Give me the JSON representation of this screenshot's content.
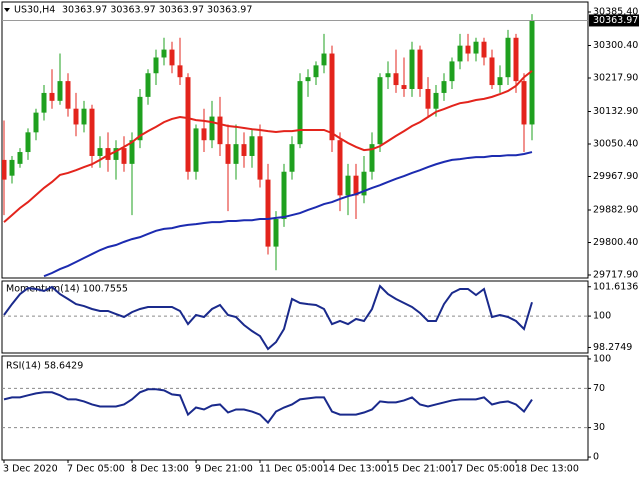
{
  "chart_data": [
    {
      "type": "candlestick",
      "title": "US30,H4",
      "quote": "30363.97 30363.97 30363.97 30363.97",
      "categories": [
        "3 Dec 2020",
        null,
        null,
        null,
        null,
        null,
        null,
        null,
        "7 Dec 05:00",
        null,
        null,
        null,
        null,
        null,
        null,
        null,
        "8 Dec 13:00",
        null,
        null,
        null,
        null,
        null,
        null,
        null,
        "9 Dec 21:00",
        null,
        null,
        null,
        null,
        null,
        null,
        null,
        "11 Dec 05:00",
        null,
        null,
        null,
        null,
        null,
        null,
        null,
        "14 Dec 13:00",
        null,
        null,
        null,
        null,
        null,
        null,
        null,
        "15 Dec 21:00",
        null,
        null,
        null,
        null,
        null,
        null,
        null,
        "17 Dec 05:00",
        null,
        null,
        null,
        null,
        null,
        null,
        null,
        "18 Dec 13:00",
        null,
        null
      ],
      "open": [
        30010,
        29970,
        30000,
        30030,
        30080,
        30130,
        30180,
        30160,
        30210,
        30140,
        30100,
        30140,
        30020,
        30040,
        30010,
        30040,
        30000,
        30060,
        30170,
        30230,
        30270,
        30290,
        30250,
        30220,
        29980,
        30090,
        30060,
        30120,
        30050,
        30000,
        30050,
        30020,
        30070,
        29960,
        29790,
        29860,
        29980,
        30050,
        30210,
        30220,
        30250,
        30280,
        30060,
        29920,
        29970,
        29920,
        29980,
        30050,
        30220,
        30230,
        30200,
        30190,
        30290,
        30190,
        30140,
        30180,
        30210,
        30260,
        30300,
        30280,
        30310,
        30270,
        30200,
        30220,
        30320,
        30210,
        30100
      ],
      "high": [
        30110,
        30020,
        30040,
        30090,
        30140,
        30200,
        30240,
        30280,
        30230,
        30180,
        30160,
        30150,
        30070,
        30080,
        30060,
        30070,
        30080,
        30190,
        30240,
        30290,
        30320,
        30310,
        30320,
        30230,
        30100,
        30140,
        30160,
        30170,
        30100,
        30100,
        30080,
        30090,
        30100,
        30000,
        29880,
        30000,
        30070,
        30230,
        30240,
        30260,
        30330,
        30300,
        30080,
        30000,
        30000,
        30020,
        30080,
        30230,
        30260,
        30290,
        30270,
        30310,
        30300,
        30220,
        30200,
        30230,
        30270,
        30330,
        30330,
        30320,
        30320,
        30290,
        30250,
        30340,
        30330,
        30230,
        30380
      ],
      "low": [
        29870,
        29950,
        29990,
        30010,
        30060,
        30110,
        30140,
        30150,
        30120,
        30070,
        30080,
        29990,
        29990,
        29980,
        29960,
        29980,
        29870,
        30040,
        30150,
        30200,
        30250,
        30230,
        30200,
        29960,
        29960,
        30030,
        30040,
        30020,
        29880,
        29960,
        29990,
        29990,
        29940,
        29770,
        29730,
        29840,
        29960,
        30040,
        30170,
        30200,
        30230,
        30030,
        29880,
        29870,
        29860,
        29900,
        29960,
        30030,
        30190,
        30180,
        30170,
        30170,
        30170,
        30120,
        30120,
        30160,
        30190,
        30240,
        30260,
        30260,
        30250,
        30190,
        30180,
        30200,
        30180,
        30030,
        30060
      ],
      "close": [
        29960,
        30010,
        30030,
        30080,
        30130,
        30180,
        30160,
        30210,
        30140,
        30100,
        30140,
        30020,
        30040,
        30010,
        30040,
        30000,
        30060,
        30170,
        30230,
        30270,
        30290,
        30250,
        30220,
        29980,
        30090,
        30060,
        30120,
        30050,
        30000,
        30050,
        30020,
        30070,
        29960,
        29790,
        29860,
        29980,
        30050,
        30210,
        30220,
        30250,
        30280,
        30060,
        29920,
        29970,
        29920,
        29980,
        30050,
        30220,
        30230,
        30200,
        30190,
        30290,
        30190,
        30140,
        30180,
        30210,
        30260,
        30300,
        30280,
        30310,
        30270,
        30200,
        30220,
        30320,
        30210,
        30100,
        30363.97
      ],
      "up_color": "#1fa01f",
      "down_color": "#e3241c",
      "overlays": [
        {
          "color": "#e3241c",
          "values": [
            29852,
            29870,
            29888,
            29903,
            29921,
            29939,
            29954,
            29972,
            29977,
            29984,
            29992,
            29999,
            30010,
            30022,
            30032,
            30043,
            30055,
            30071,
            30083,
            30094,
            30106,
            30114,
            30119,
            30116,
            30111,
            30109,
            30106,
            30101,
            30096,
            30094,
            30091,
            30088,
            30086,
            30083,
            30081,
            30083,
            30083,
            30086,
            30086,
            30086,
            30086,
            30078,
            30065,
            30053,
            30043,
            30035,
            30037,
            30045,
            30058,
            30071,
            30083,
            30096,
            30106,
            30119,
            30132,
            30139,
            30147,
            30154,
            30157,
            30162,
            30165,
            30170,
            30177,
            30185,
            30198,
            30220,
            30236
          ]
        },
        {
          "color": "#1c2bb0",
          "values": [
            null,
            null,
            null,
            null,
            null,
            29715,
            29723,
            29733,
            29741,
            29751,
            29761,
            29771,
            29781,
            29789,
            29794,
            29802,
            29809,
            29814,
            29822,
            29830,
            29835,
            29837,
            29842,
            29845,
            29847,
            29850,
            29852,
            29852,
            29855,
            29855,
            29857,
            29857,
            29860,
            29860,
            29863,
            29865,
            29870,
            29875,
            29883,
            29890,
            29898,
            29903,
            29911,
            29918,
            29923,
            29931,
            29939,
            29946,
            29954,
            29962,
            29969,
            29977,
            29984,
            29992,
            29999,
            30005,
            30010,
            30012,
            30015,
            30017,
            30017,
            30020,
            30020,
            30022,
            30022,
            30025,
            30030
          ]
        }
      ],
      "ylim": [
        29710.3,
        30410.8
      ],
      "yticks": [
        {
          "value": 30385.4,
          "label": "30385.40"
        },
        {
          "value": 30300.4,
          "label": "30300.40"
        },
        {
          "value": 30217.9,
          "label": "30217.90"
        },
        {
          "value": 30132.9,
          "label": "30132.90"
        },
        {
          "value": 30050.4,
          "label": "30050.40"
        },
        {
          "value": 29967.9,
          "label": "29967.90"
        },
        {
          "value": 29882.9,
          "label": "29882.90"
        },
        {
          "value": 29800.4,
          "label": "29800.40"
        },
        {
          "value": 29717.9,
          "label": "29717.90"
        }
      ]
    },
    {
      "type": "line",
      "title": "Momentum(14) 100.7555",
      "color": "#1a2a8c",
      "values": [
        100.06,
        100.66,
        101.21,
        101.54,
        101.49,
        101.38,
        101.6,
        101.21,
        100.94,
        100.66,
        100.55,
        100.39,
        100.28,
        100.28,
        100.11,
        99.95,
        100.22,
        100.39,
        100.5,
        100.5,
        100.5,
        100.5,
        100.28,
        99.56,
        100.06,
        99.95,
        100.39,
        100.61,
        100.06,
        99.95,
        99.51,
        99.18,
        98.9,
        98.19,
        98.57,
        99.29,
        100.94,
        100.72,
        100.66,
        100.61,
        100.39,
        99.56,
        99.73,
        99.56,
        99.84,
        99.73,
        100.39,
        101.65,
        101.21,
        100.94,
        100.72,
        100.5,
        100.17,
        99.73,
        99.73,
        100.66,
        101.27,
        101.49,
        101.49,
        101.16,
        101.49,
        99.95,
        100.06,
        99.95,
        99.73,
        99.29,
        100.76
      ],
      "ylim": [
        97.97,
        101.93
      ],
      "yticks": [
        {
          "value": 101.6136,
          "label": "101.6136"
        },
        100,
        98.2749
      ],
      "levels": [
        100
      ]
    },
    {
      "type": "line",
      "title": "RSI(14) 58.6429",
      "color": "#1a2a8c",
      "values": [
        58.8,
        60.8,
        60.8,
        62.9,
        64.9,
        66,
        66,
        62.9,
        58.8,
        58.8,
        56.7,
        53.6,
        51.5,
        51.5,
        51.5,
        53.6,
        58.8,
        66,
        69.1,
        69.1,
        68,
        63.9,
        62.9,
        43.3,
        50.5,
        48.5,
        52.6,
        53.6,
        45.4,
        48.5,
        48.5,
        46.4,
        43.3,
        35.1,
        46.4,
        50.5,
        53.6,
        58.8,
        59.8,
        60.8,
        60.8,
        46.4,
        43.3,
        43.3,
        43.3,
        45.4,
        48.5,
        56.7,
        55.7,
        55.7,
        57.7,
        60.8,
        53.6,
        51.5,
        53.6,
        55.7,
        57.7,
        58.8,
        58.8,
        58.8,
        60.8,
        53.6,
        55.7,
        56.7,
        53.6,
        46.4,
        58.64
      ],
      "ylim": [
        -3,
        103
      ],
      "yticks": [
        100,
        70,
        30,
        0
      ],
      "levels": [
        70,
        30
      ]
    }
  ]
}
